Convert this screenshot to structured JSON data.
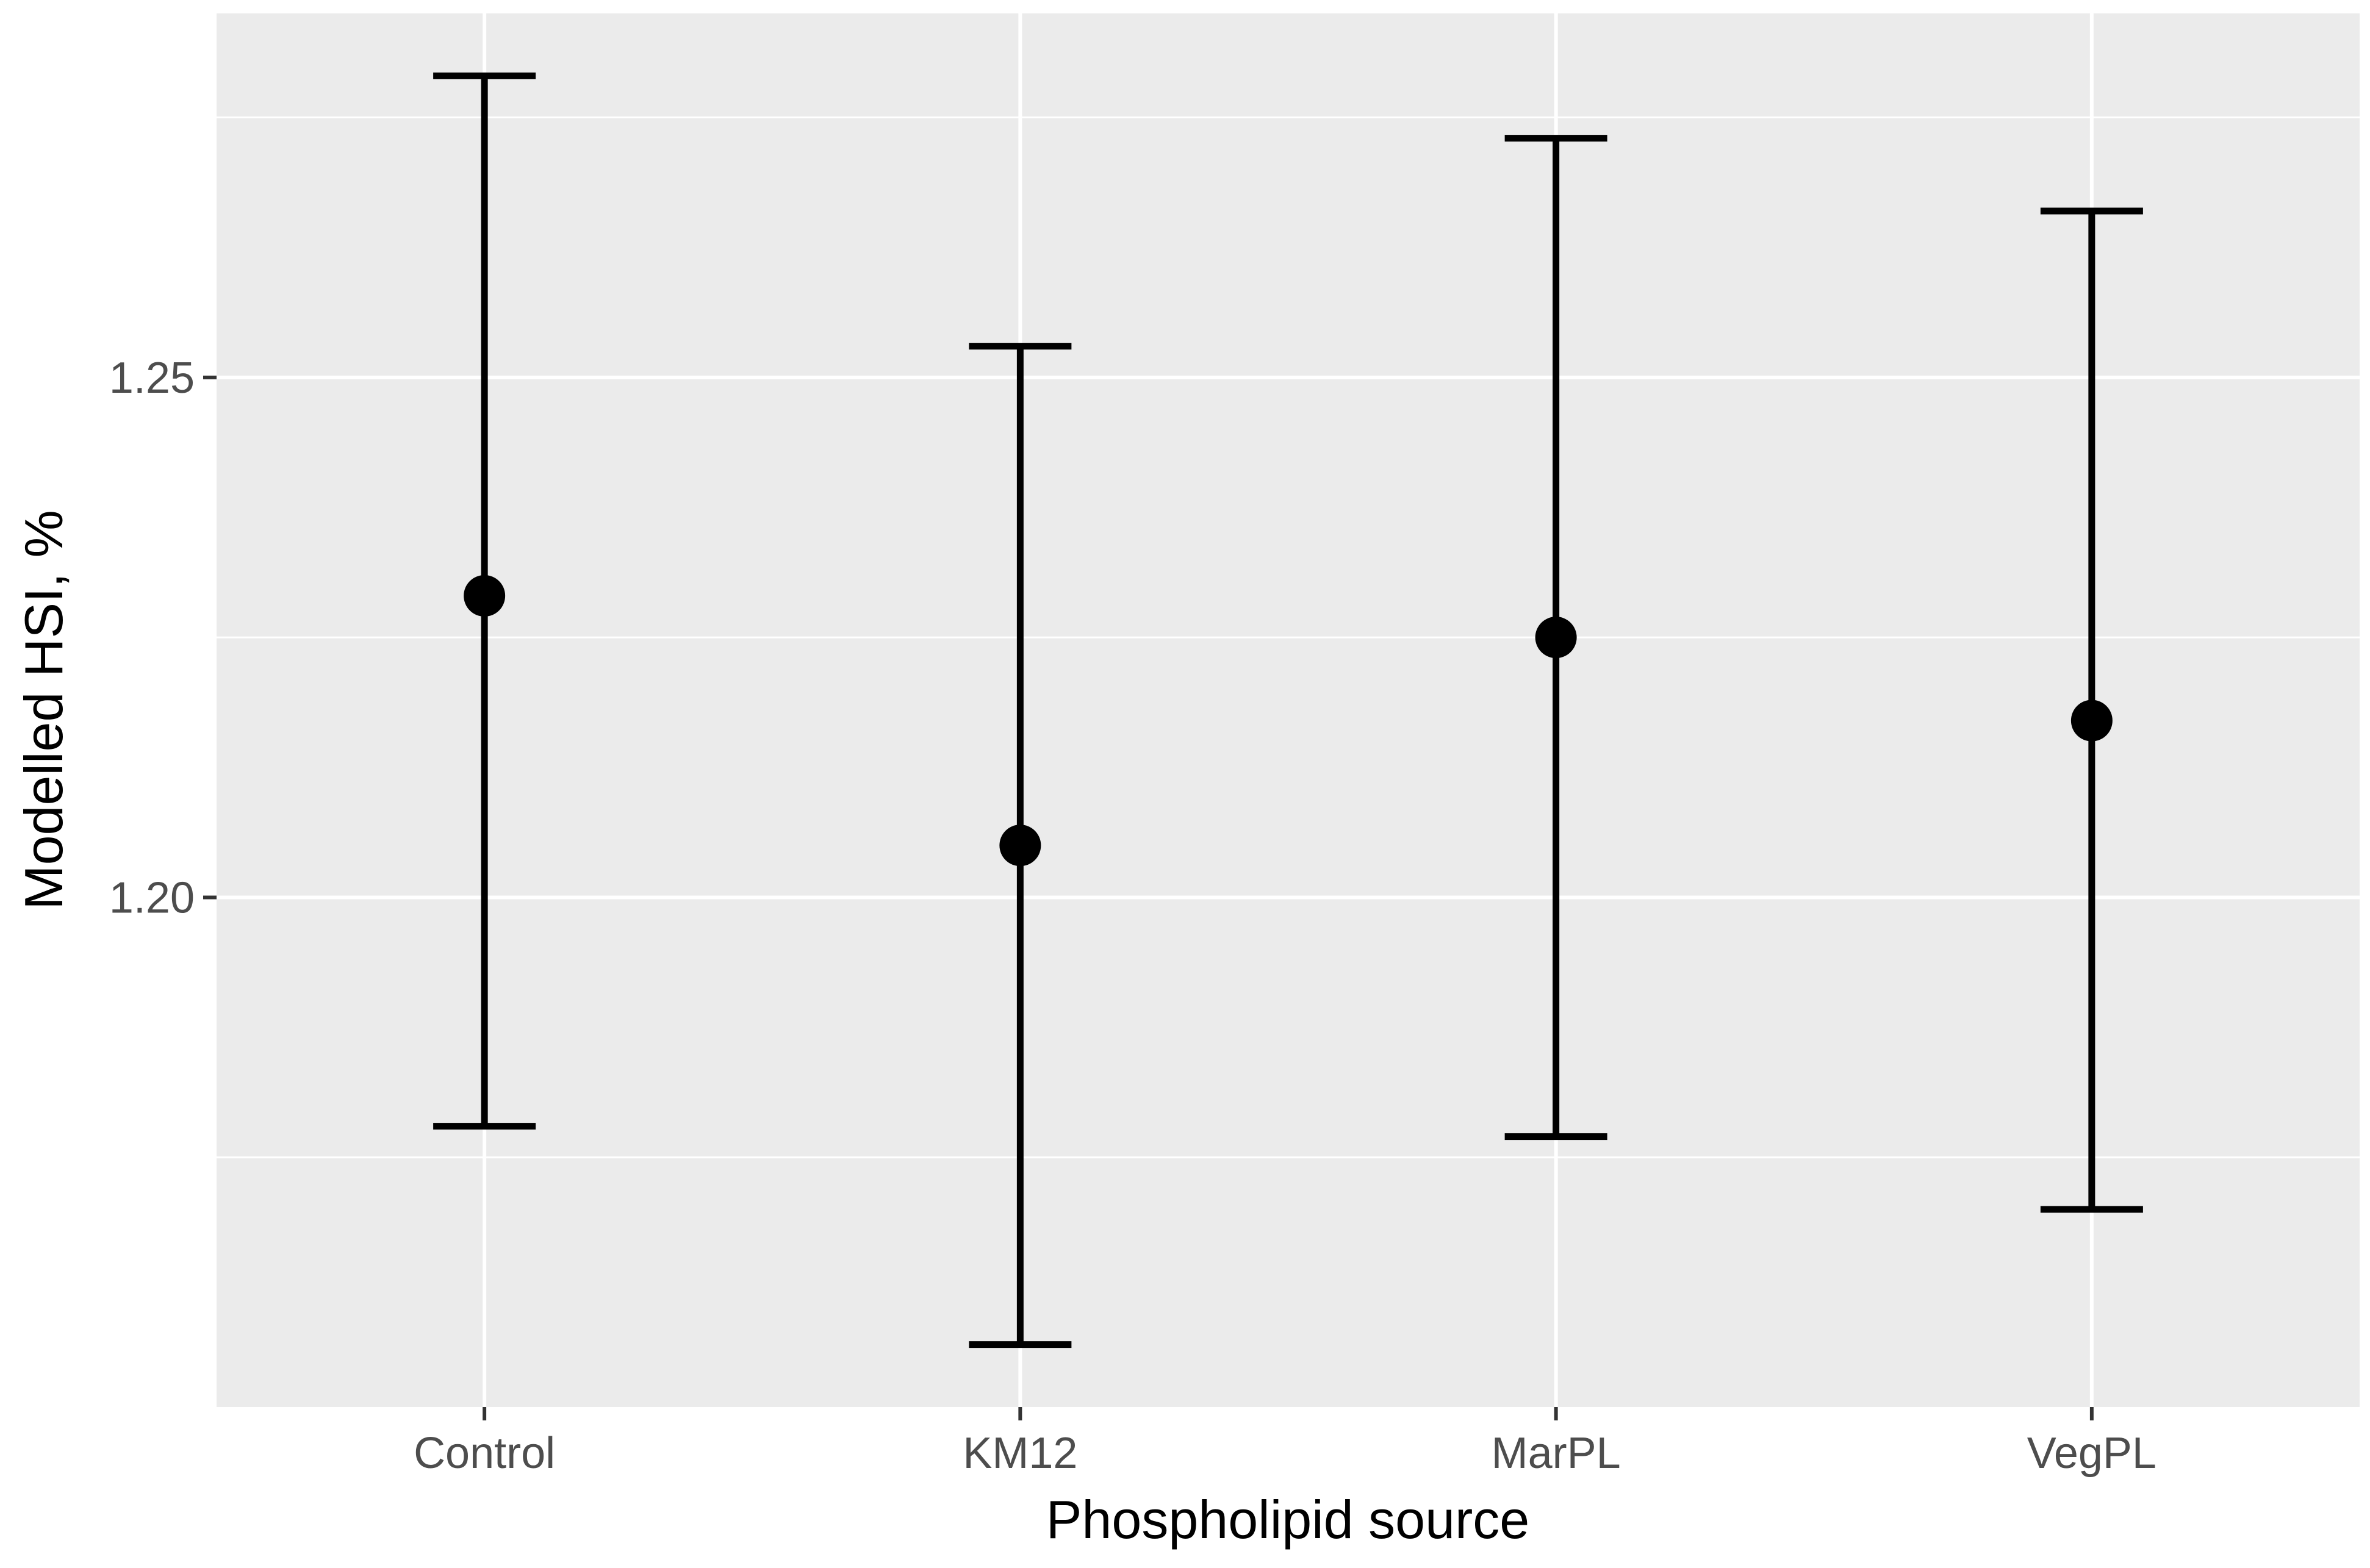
{
  "chart_data": {
    "type": "scatter",
    "subtype": "point-with-error-bars",
    "title": "",
    "xlabel": "Phospholipid source",
    "ylabel": "Modelled HSI, %",
    "categories": [
      "Control",
      "KM12",
      "MarPL",
      "VegPL"
    ],
    "series": [
      {
        "values": [
          1.229,
          1.205,
          1.225,
          1.217
        ],
        "lower": [
          1.178,
          1.157,
          1.177,
          1.17
        ],
        "upper": [
          1.279,
          1.253,
          1.273,
          1.266
        ]
      }
    ],
    "ylim": [
      1.151,
      1.285
    ],
    "yticks": [
      1.2,
      1.25
    ],
    "ytick_labels": [
      "1.20",
      "1.25"
    ],
    "grid": true,
    "legend": "none",
    "colors": {
      "panel_background": "#ebebeb",
      "grid": "#ffffff",
      "marks": "#000000",
      "tick_text": "#4d4d4d",
      "axis_title": "#000000"
    }
  }
}
